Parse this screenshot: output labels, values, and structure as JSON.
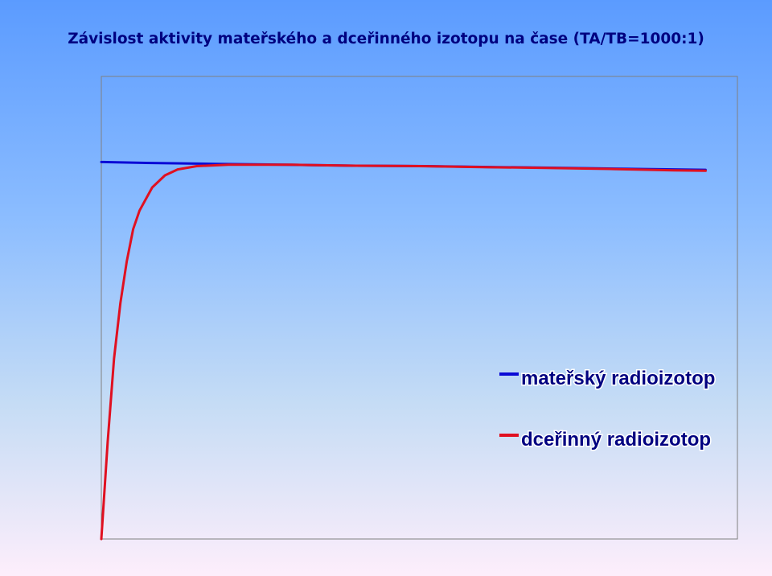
{
  "chart_data": {
    "type": "line",
    "title": "Závislost aktivity mateřského a dceřinného izotopu na čase (TA/TB=1000:1)",
    "xlabel": "",
    "ylabel": "",
    "xlim": [
      0,
      1
    ],
    "ylim": [
      0,
      1
    ],
    "grid": false,
    "legend_position": "bottom-right",
    "series": [
      {
        "name": "mateřský radioizotop",
        "color": "#0a0ad6",
        "x": [
          0,
          0.07,
          0.18,
          0.29,
          0.4,
          0.51,
          0.62,
          0.73,
          0.84,
          0.95
        ],
        "y": [
          0.815,
          0.813,
          0.811,
          0.809,
          0.807,
          0.806,
          0.804,
          0.802,
          0.8,
          0.798
        ]
      },
      {
        "name": "dceřinný radioizotop",
        "color": "#e01020",
        "x": [
          0,
          0.01,
          0.02,
          0.03,
          0.04,
          0.05,
          0.06,
          0.08,
          0.1,
          0.12,
          0.15,
          0.2,
          0.3,
          0.4,
          0.5,
          0.6,
          0.7,
          0.8,
          0.9,
          0.95
        ],
        "y": [
          0,
          0.21,
          0.39,
          0.51,
          0.6,
          0.67,
          0.71,
          0.76,
          0.786,
          0.799,
          0.806,
          0.809,
          0.809,
          0.807,
          0.806,
          0.804,
          0.802,
          0.8,
          0.797,
          0.796
        ]
      }
    ]
  }
}
